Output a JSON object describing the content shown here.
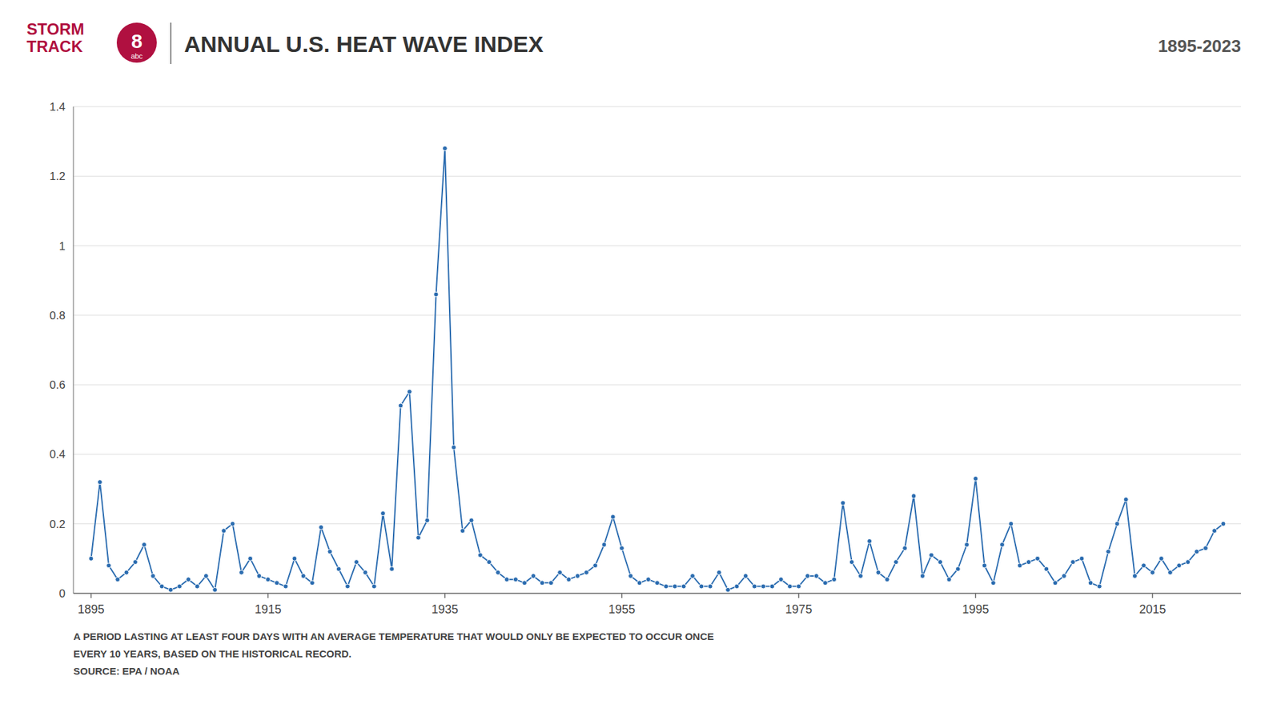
{
  "chart_data": {
    "type": "line",
    "title": "ANNUAL U.S. HEAT WAVE INDEX",
    "subtitle": "1895-2023",
    "annotations": [
      "STORM\nTRACK",
      "8",
      "abc",
      "A PERIOD LASTING AT LEAST FOUR DAYS WITH AN AVERAGE TEMPERATURE THAT WOULD ONLY BE EXPECTED TO OCCUR ONCE",
      "EVERY 10 YEARS, BASED ON THE HISTORICAL RECORD.",
      "SOURCE: EPA / NOAA"
    ],
    "x": [
      1895,
      1896,
      1897,
      1898,
      1899,
      1900,
      1901,
      1902,
      1903,
      1904,
      1905,
      1906,
      1907,
      1908,
      1909,
      1910,
      1911,
      1912,
      1913,
      1914,
      1915,
      1916,
      1917,
      1918,
      1919,
      1920,
      1921,
      1922,
      1923,
      1924,
      1925,
      1926,
      1927,
      1928,
      1929,
      1930,
      1931,
      1932,
      1933,
      1934,
      1935,
      1936,
      1937,
      1938,
      1939,
      1940,
      1941,
      1942,
      1943,
      1944,
      1945,
      1946,
      1947,
      1948,
      1949,
      1950,
      1951,
      1952,
      1953,
      1954,
      1955,
      1956,
      1957,
      1958,
      1959,
      1960,
      1961,
      1962,
      1963,
      1964,
      1965,
      1966,
      1967,
      1968,
      1969,
      1970,
      1971,
      1972,
      1973,
      1974,
      1975,
      1976,
      1977,
      1978,
      1979,
      1980,
      1981,
      1982,
      1983,
      1984,
      1985,
      1986,
      1987,
      1988,
      1989,
      1990,
      1991,
      1992,
      1993,
      1994,
      1995,
      1996,
      1997,
      1998,
      1999,
      2000,
      2001,
      2002,
      2003,
      2004,
      2005,
      2006,
      2007,
      2008,
      2009,
      2010,
      2011,
      2012,
      2013,
      2014,
      2015,
      2016,
      2017,
      2018,
      2019,
      2020,
      2021,
      2022,
      2023
    ],
    "values": [
      0.1,
      0.32,
      0.08,
      0.04,
      0.06,
      0.09,
      0.14,
      0.05,
      0.02,
      0.01,
      0.02,
      0.04,
      0.02,
      0.05,
      0.01,
      0.18,
      0.2,
      0.06,
      0.1,
      0.05,
      0.04,
      0.03,
      0.02,
      0.1,
      0.05,
      0.03,
      0.19,
      0.12,
      0.07,
      0.02,
      0.09,
      0.06,
      0.02,
      0.23,
      0.07,
      0.54,
      0.58,
      0.16,
      0.21,
      0.86,
      1.28,
      0.42,
      0.18,
      0.21,
      0.11,
      0.09,
      0.06,
      0.04,
      0.04,
      0.03,
      0.05,
      0.03,
      0.03,
      0.06,
      0.04,
      0.05,
      0.06,
      0.08,
      0.14,
      0.22,
      0.13,
      0.05,
      0.03,
      0.04,
      0.03,
      0.02,
      0.02,
      0.02,
      0.05,
      0.02,
      0.02,
      0.06,
      0.01,
      0.02,
      0.05,
      0.02,
      0.02,
      0.02,
      0.04,
      0.02,
      0.02,
      0.05,
      0.05,
      0.03,
      0.04,
      0.26,
      0.09,
      0.05,
      0.15,
      0.06,
      0.04,
      0.09,
      0.13,
      0.28,
      0.05,
      0.11,
      0.09,
      0.04,
      0.07,
      0.14,
      0.33,
      0.08,
      0.03,
      0.14,
      0.2,
      0.08,
      0.09,
      0.1,
      0.07,
      0.03,
      0.05,
      0.09,
      0.1,
      0.03,
      0.02,
      0.12,
      0.2,
      0.27,
      0.05,
      0.08,
      0.06,
      0.1,
      0.06,
      0.08,
      0.09,
      0.12,
      0.13,
      0.18,
      0.2
    ],
    "marker": "circle",
    "xlim": [
      1893,
      2025
    ],
    "xticks": [
      1895,
      1915,
      1935,
      1955,
      1975,
      1995,
      2015
    ],
    "ylim": [
      0,
      1.4
    ],
    "yticks": [
      0,
      0.2,
      0.4,
      0.6,
      0.8,
      1,
      1.2,
      1.4
    ],
    "grid": true
  }
}
